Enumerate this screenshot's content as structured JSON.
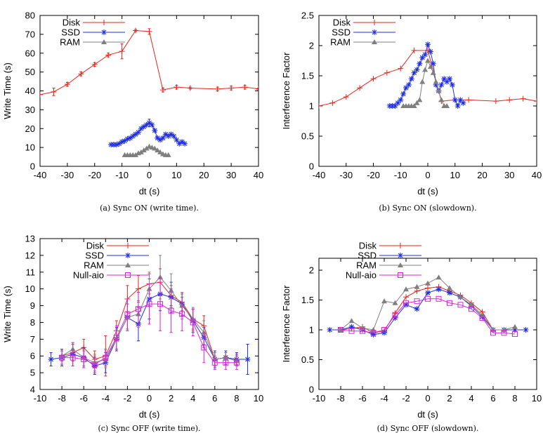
{
  "chart_data": [
    {
      "type": "line",
      "caption": "(a) Sync ON (write time).",
      "xlabel": "dt (s)",
      "ylabel": "Write Time (s)",
      "xlim": [
        -40,
        40
      ],
      "ylim": [
        0,
        80
      ],
      "xticks": [
        "-40",
        "-30",
        "-20",
        "-10",
        "0",
        "10",
        "20",
        "30",
        "40"
      ],
      "yticks": [
        "0",
        "10",
        "20",
        "30",
        "40",
        "50",
        "60",
        "70",
        "80"
      ],
      "legend_position": "top-left",
      "series": [
        {
          "name": "Disk",
          "color": "#e8261c",
          "marker": "plus",
          "x": [
            -40,
            -35,
            -30,
            -25,
            -20,
            -15,
            -10,
            -5,
            0,
            5,
            10,
            15,
            25,
            30,
            35,
            40
          ],
          "y": [
            38,
            39.5,
            43.5,
            49,
            54,
            59,
            61,
            72,
            71.5,
            40.5,
            42,
            41.5,
            41,
            41.5,
            42,
            41
          ],
          "err": [
            0,
            2,
            1,
            1,
            1,
            1,
            4,
            0.5,
            1.5,
            1,
            1,
            0.5,
            1,
            1,
            1,
            0.5
          ]
        },
        {
          "name": "SSD",
          "color": "#1f2ee0",
          "marker": "star",
          "x": [
            -14,
            -13,
            -12,
            -11,
            -10,
            -9,
            -8,
            -7,
            -6,
            -5,
            -4,
            -3,
            -2,
            -1,
            0,
            1,
            2,
            3,
            4,
            5,
            6,
            7,
            8,
            9,
            10,
            11,
            12,
            13
          ],
          "y": [
            11.5,
            11.5,
            11.5,
            12,
            13,
            13.5,
            14.5,
            15,
            16,
            17,
            18,
            20,
            21,
            22,
            23,
            22,
            19,
            15,
            14,
            15,
            17,
            16,
            17,
            16,
            14,
            12,
            13,
            12
          ],
          "err": [
            0,
            0,
            0,
            0,
            0,
            0,
            0,
            0,
            0,
            0,
            0,
            0,
            0,
            0,
            2,
            0,
            0,
            0,
            0,
            0,
            0,
            0,
            0,
            0,
            0,
            0,
            0,
            0
          ]
        },
        {
          "name": "RAM",
          "color": "#7f7f7f",
          "marker": "triangle",
          "x": [
            -9,
            -8,
            -7,
            -6,
            -5,
            -4,
            -3,
            -2,
            -1,
            0,
            1,
            2,
            3,
            4,
            5,
            6,
            7
          ],
          "y": [
            6,
            6,
            6,
            6,
            6,
            7,
            7.5,
            8.5,
            9.5,
            10.5,
            10,
            9.5,
            8.5,
            7.5,
            6.5,
            6,
            6
          ],
          "err": [
            0,
            0,
            0,
            0,
            0,
            0,
            0,
            0,
            0,
            0,
            0,
            0,
            0,
            0,
            0,
            0,
            0
          ]
        }
      ]
    },
    {
      "type": "line",
      "caption": "(b) Sync ON (slowdown).",
      "xlabel": "dt (s)",
      "ylabel": "Interference Factor",
      "xlim": [
        -40,
        40
      ],
      "ylim": [
        0,
        2.5
      ],
      "xticks": [
        "-40",
        "-30",
        "-20",
        "-10",
        "0",
        "10",
        "20",
        "30",
        "40"
      ],
      "yticks": [
        "0",
        "0.5",
        "1",
        "1.5",
        "2",
        "2.5"
      ],
      "legend_position": "top-left",
      "series": [
        {
          "name": "Disk",
          "color": "#e8261c",
          "marker": "plus",
          "x": [
            -40,
            -35,
            -30,
            -25,
            -20,
            -15,
            -10,
            -5,
            0,
            5,
            10,
            15,
            25,
            30,
            35,
            40
          ],
          "y": [
            1.0,
            1.05,
            1.15,
            1.3,
            1.45,
            1.55,
            1.62,
            1.92,
            1.92,
            1.08,
            1.1,
            1.1,
            1.08,
            1.1,
            1.12,
            1.08
          ]
        },
        {
          "name": "SSD",
          "color": "#1f2ee0",
          "marker": "star",
          "x": [
            -14,
            -13,
            -12,
            -11,
            -10,
            -9,
            -8,
            -7,
            -6,
            -5,
            -4,
            -3,
            -2,
            -1,
            0,
            1,
            2,
            3,
            4,
            5,
            6,
            7,
            8,
            9,
            10,
            11,
            12,
            13
          ],
          "y": [
            1.0,
            1.0,
            1.0,
            1.05,
            1.1,
            1.2,
            1.3,
            1.35,
            1.45,
            1.55,
            1.6,
            1.7,
            1.8,
            1.85,
            2.02,
            1.9,
            1.7,
            1.35,
            1.25,
            1.35,
            1.45,
            1.4,
            1.45,
            1.35,
            1.1,
            1.0,
            1.1,
            1.05
          ]
        },
        {
          "name": "RAM",
          "color": "#7f7f7f",
          "marker": "triangle",
          "x": [
            -9,
            -8,
            -7,
            -6,
            -5,
            -4,
            -3,
            -2,
            -1,
            0,
            1,
            2,
            3,
            4,
            5,
            6,
            7
          ],
          "y": [
            1.0,
            1.0,
            1.0,
            1.0,
            1.0,
            1.05,
            1.1,
            1.4,
            1.6,
            1.75,
            1.65,
            1.55,
            1.4,
            1.25,
            1.1,
            1.0,
            1.0
          ]
        }
      ]
    },
    {
      "type": "line",
      "caption": "(c) Sync OFF (write time).",
      "xlabel": "dt (s)",
      "ylabel": "Write Time (s)",
      "xlim": [
        -10,
        10
      ],
      "ylim": [
        4,
        13
      ],
      "xticks": [
        "-10",
        "-8",
        "-6",
        "-4",
        "-2",
        "0",
        "2",
        "4",
        "6",
        "8",
        "10"
      ],
      "yticks": [
        "4",
        "5",
        "6",
        "7",
        "8",
        "9",
        "10",
        "11",
        "12",
        "13"
      ],
      "legend_position": "top-left",
      "series": [
        {
          "name": "Disk",
          "color": "#e8261c",
          "marker": "plus",
          "x": [
            -8,
            -7,
            -6,
            -5,
            -4,
            -3,
            -2,
            -1,
            0,
            1,
            2,
            3,
            4,
            5,
            6,
            7,
            8
          ],
          "y": [
            6.0,
            6.2,
            6.5,
            5.8,
            6.0,
            7.5,
            9.4,
            10.0,
            10.3,
            10.4,
            9.6,
            9.2,
            8.2,
            7.8,
            5.8,
            5.9,
            5.8
          ],
          "err": [
            0.3,
            0.5,
            0.5,
            0.5,
            1.2,
            0.6,
            0.8,
            0.8,
            0.6,
            0.8,
            0.6,
            0.5,
            0.6,
            0.6,
            0.4,
            0.3,
            0.3
          ]
        },
        {
          "name": "SSD",
          "color": "#1f2ee0",
          "marker": "star",
          "x": [
            -9,
            -8,
            -7,
            -6,
            -5,
            -4,
            -3,
            -2,
            -1,
            0,
            1,
            2,
            3,
            4,
            5,
            6,
            7,
            8,
            9
          ],
          "y": [
            5.8,
            5.9,
            6.1,
            5.9,
            5.4,
            5.6,
            7.0,
            8.3,
            7.9,
            9.4,
            9.7,
            9.5,
            9.1,
            8.1,
            7.1,
            5.8,
            5.9,
            5.8,
            5.8
          ],
          "err": [
            0.4,
            0.5,
            0.7,
            0.6,
            0.5,
            0.6,
            0.7,
            0.8,
            1.0,
            1.2,
            1.0,
            0.9,
            0.7,
            0.7,
            0.6,
            0.5,
            0.4,
            0.4,
            0.9
          ]
        },
        {
          "name": "RAM",
          "color": "#7f7f7f",
          "marker": "triangle",
          "x": [
            -8,
            -7,
            -6,
            -5,
            -4,
            -3,
            -2,
            -1,
            0,
            1,
            2,
            3,
            4,
            5,
            6,
            7,
            8
          ],
          "y": [
            6.0,
            6.4,
            5.9,
            5.6,
            5.8,
            7.0,
            8.3,
            8.5,
            10.0,
            10.7,
            9.9,
            9.0,
            8.2,
            7.4,
            5.8,
            5.9,
            5.7
          ],
          "err": [
            0.3,
            0.4,
            0.5,
            0.5,
            0.5,
            0.6,
            0.8,
            0.8,
            1.0,
            1.3,
            1.0,
            0.8,
            0.7,
            0.7,
            0.4,
            0.3,
            0.3
          ]
        },
        {
          "name": "Null-aio",
          "color": "#e020e0",
          "marker": "square",
          "x": [
            -8,
            -7,
            -6,
            -5,
            -4,
            -3,
            -2,
            -1,
            0,
            1,
            2,
            3,
            4,
            5,
            6,
            7,
            8
          ],
          "y": [
            5.9,
            5.9,
            5.8,
            5.5,
            5.9,
            7.1,
            8.5,
            8.8,
            9.1,
            9.1,
            8.7,
            8.5,
            8.0,
            6.5,
            5.6,
            5.6,
            5.6
          ],
          "err": [
            0.4,
            0.5,
            0.5,
            0.5,
            0.5,
            0.7,
            0.9,
            1.0,
            1.2,
            1.6,
            1.3,
            1.0,
            0.8,
            0.9,
            0.4,
            0.4,
            0.4
          ]
        }
      ]
    },
    {
      "type": "line",
      "caption": "(d) Sync OFF (slowdown).",
      "xlabel": "dt (s)",
      "ylabel": "Interference Factor",
      "xlim": [
        -10,
        10
      ],
      "ylim": [
        0,
        2.2
      ],
      "xticks": [
        "-10",
        "-8",
        "-6",
        "-4",
        "-2",
        "0",
        "2",
        "4",
        "6",
        "8",
        "10"
      ],
      "yticks": [
        "0",
        "0.5",
        "1",
        "1.5",
        "2"
      ],
      "legend_position": "top-left",
      "series": [
        {
          "name": "Disk",
          "color": "#e8261c",
          "marker": "plus",
          "x": [
            -8,
            -7,
            -6,
            -5,
            -4,
            -3,
            -2,
            -1,
            0,
            1,
            2,
            3,
            4,
            5,
            6,
            7,
            8
          ],
          "y": [
            1.0,
            1.02,
            1.05,
            0.95,
            0.98,
            1.28,
            1.55,
            1.65,
            1.7,
            1.72,
            1.65,
            1.58,
            1.45,
            1.3,
            1.0,
            1.0,
            1.0
          ]
        },
        {
          "name": "SSD",
          "color": "#1f2ee0",
          "marker": "star",
          "x": [
            -9,
            -8,
            -7,
            -6,
            -5,
            -4,
            -3,
            -2,
            -1,
            0,
            1,
            2,
            3,
            4,
            5,
            6,
            7,
            8,
            9
          ],
          "y": [
            1.0,
            1.0,
            1.05,
            1.0,
            0.92,
            0.95,
            1.2,
            1.42,
            1.35,
            1.62,
            1.68,
            1.62,
            1.55,
            1.4,
            1.22,
            1.0,
            1.0,
            1.0,
            1.0
          ]
        },
        {
          "name": "RAM",
          "color": "#7f7f7f",
          "marker": "triangle",
          "x": [
            -8,
            -7,
            -6,
            -5,
            -4,
            -3,
            -2,
            -1,
            0,
            1,
            2,
            3,
            4,
            5,
            6,
            7,
            8
          ],
          "y": [
            1.0,
            1.15,
            1.03,
            1.0,
            1.48,
            1.45,
            1.68,
            1.72,
            1.78,
            1.88,
            1.7,
            1.55,
            1.42,
            1.25,
            1.0,
            1.0,
            1.05
          ]
        },
        {
          "name": "Null-aio",
          "color": "#e020e0",
          "marker": "square",
          "x": [
            -8,
            -7,
            -6,
            -5,
            -4,
            -3,
            -2,
            -1,
            0,
            1,
            2,
            3,
            4,
            5,
            6,
            7,
            8
          ],
          "y": [
            1.0,
            0.98,
            0.98,
            0.95,
            1.0,
            1.25,
            1.45,
            1.48,
            1.52,
            1.52,
            1.45,
            1.42,
            1.35,
            1.2,
            0.95,
            0.95,
            0.93
          ]
        }
      ]
    }
  ]
}
